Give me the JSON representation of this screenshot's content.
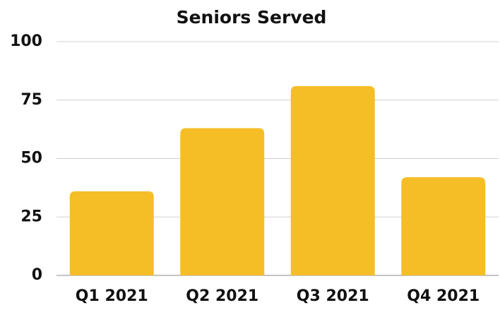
{
  "chart_data": {
    "type": "bar",
    "title": "Seniors Served",
    "categories": [
      "Q1 2021",
      "Q2 2021",
      "Q3 2021",
      "Q4 2021"
    ],
    "values": [
      36,
      63,
      81,
      42
    ],
    "color": "#f5be27",
    "ylim": [
      0,
      100
    ],
    "yticks": [
      0,
      25,
      50,
      75,
      100
    ],
    "grid": true
  }
}
